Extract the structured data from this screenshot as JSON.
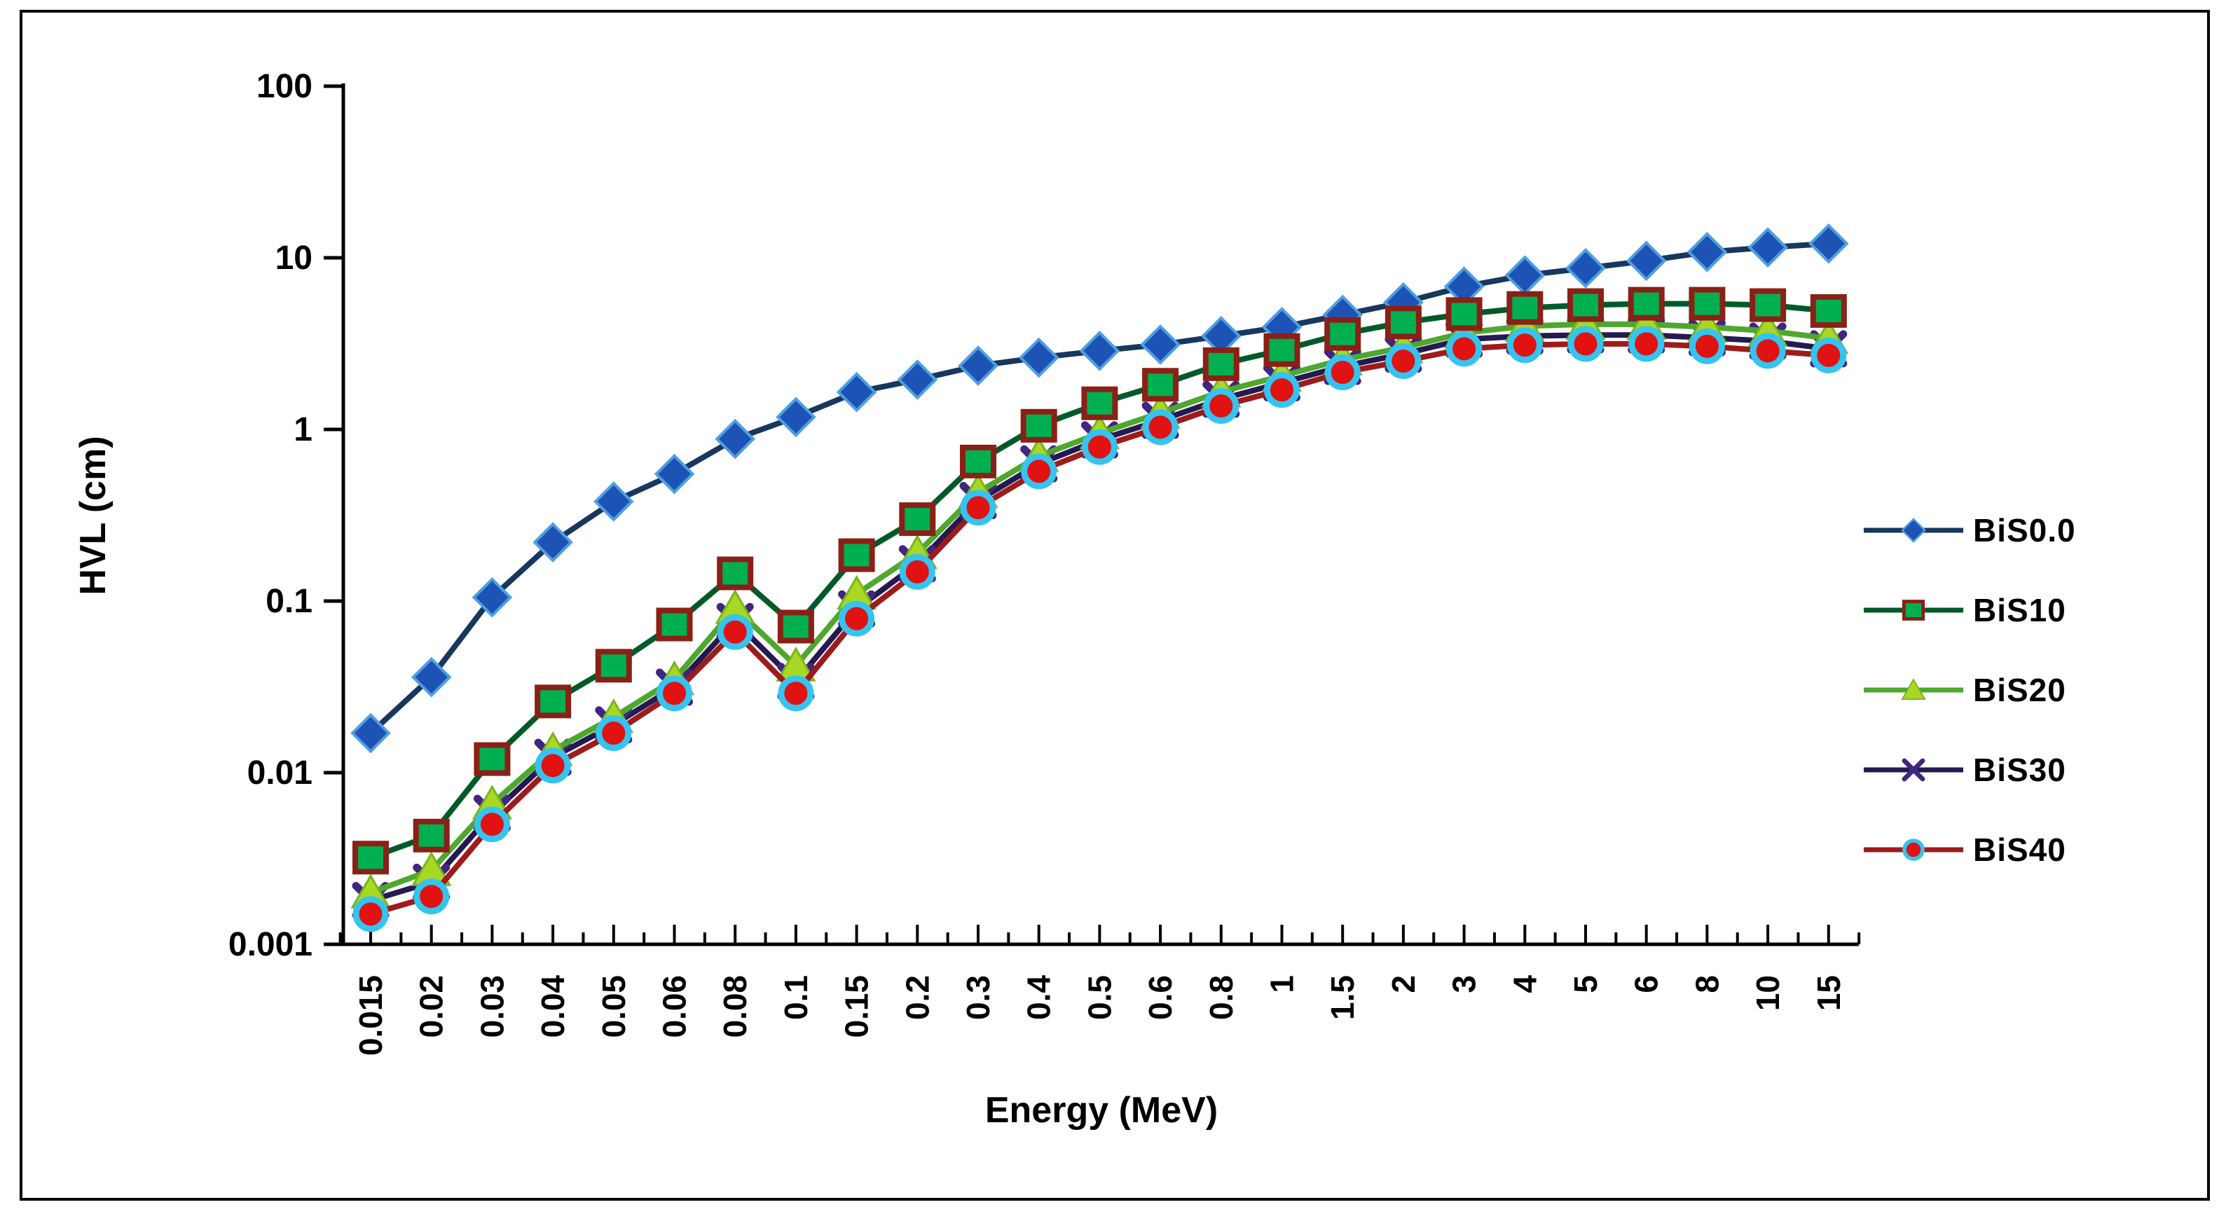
{
  "figure": {
    "background": "#ffffff",
    "border_color": "#000000",
    "plot_background": "#ffffff"
  },
  "chart_data": {
    "type": "line",
    "title": "",
    "xlabel": "Energy (MeV)",
    "ylabel": "HVL (cm)",
    "grid": "off",
    "legend_position": "right",
    "x_categories": [
      "0.015",
      "0.02",
      "0.03",
      "0.04",
      "0.05",
      "0.06",
      "0.08",
      "0.1",
      "0.15",
      "0.2",
      "0.3",
      "0.4",
      "0.5",
      "0.6",
      "0.8",
      "1",
      "1.5",
      "2",
      "3",
      "4",
      "5",
      "6",
      "8",
      "10",
      "15"
    ],
    "y_axis": {
      "scale": "log",
      "min": 0.001,
      "max": 100,
      "tick_labels": [
        "100",
        "10",
        "1",
        "0.1",
        "0.01",
        "0.001"
      ]
    },
    "series": [
      {
        "name": "BiS0.0",
        "marker": "diamond",
        "line_color": "#17375e",
        "marker_fill": "#1d53b5",
        "marker_stroke": "#4f9fe0",
        "values": [
          0.017,
          0.036,
          0.105,
          0.22,
          0.38,
          0.55,
          0.88,
          1.18,
          1.65,
          1.95,
          2.35,
          2.62,
          2.87,
          3.12,
          3.5,
          3.95,
          4.65,
          5.5,
          6.8,
          7.9,
          8.7,
          9.6,
          10.8,
          11.5,
          12.1
        ]
      },
      {
        "name": "BiS10",
        "marker": "square",
        "line_color": "#005a28",
        "marker_fill": "#00b050",
        "marker_stroke": "#8b2016",
        "values": [
          0.0032,
          0.0043,
          0.012,
          0.026,
          0.042,
          0.073,
          0.145,
          0.071,
          0.185,
          0.3,
          0.65,
          1.05,
          1.42,
          1.82,
          2.4,
          2.9,
          3.6,
          4.2,
          4.7,
          5.1,
          5.3,
          5.4,
          5.4,
          5.3,
          4.9
        ]
      },
      {
        "name": "BiS20",
        "marker": "triangle",
        "line_color": "#4ea72e",
        "marker_fill": "#a8d824",
        "marker_stroke": "#79b41e",
        "values": [
          0.002,
          0.0027,
          0.0066,
          0.0135,
          0.021,
          0.035,
          0.091,
          0.042,
          0.11,
          0.19,
          0.43,
          0.7,
          0.95,
          1.25,
          1.66,
          2.05,
          2.55,
          3.0,
          3.65,
          4.0,
          4.1,
          4.1,
          3.95,
          3.75,
          3.4
        ]
      },
      {
        "name": "BiS30",
        "marker": "x",
        "line_color": "#241a52",
        "marker_fill": "none",
        "marker_stroke": "#41257f",
        "values": [
          0.0018,
          0.0023,
          0.0058,
          0.0123,
          0.019,
          0.0315,
          0.076,
          0.034,
          0.09,
          0.165,
          0.385,
          0.63,
          0.87,
          1.13,
          1.5,
          1.87,
          2.33,
          2.75,
          3.35,
          3.5,
          3.55,
          3.55,
          3.42,
          3.27,
          2.95
        ]
      },
      {
        "name": "BiS40",
        "marker": "circle",
        "line_color": "#9e1b1b",
        "marker_fill": "#e01212",
        "marker_stroke": "#35c3f0",
        "values": [
          0.0015,
          0.0019,
          0.005,
          0.011,
          0.017,
          0.029,
          0.066,
          0.029,
          0.079,
          0.148,
          0.35,
          0.57,
          0.79,
          1.03,
          1.37,
          1.7,
          2.15,
          2.5,
          2.95,
          3.1,
          3.15,
          3.15,
          3.05,
          2.87,
          2.7
        ]
      }
    ]
  },
  "legend": {
    "items": [
      {
        "label": "BiS0.0"
      },
      {
        "label": "BiS10"
      },
      {
        "label": "BiS20"
      },
      {
        "label": "BiS30"
      },
      {
        "label": "BiS40"
      }
    ]
  }
}
